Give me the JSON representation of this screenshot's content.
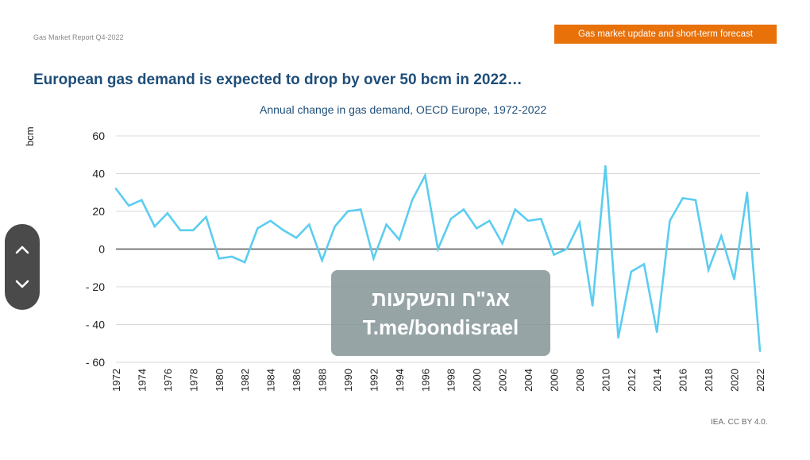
{
  "header": {
    "report_label": "Gas Market Report Q4-2022",
    "section_badge": "Gas market update and short-term forecast",
    "headline": "European gas demand is expected to drop by over 50 bcm in 2022…"
  },
  "footer": {
    "credit": "IEA. CC BY 4.0."
  },
  "watermark": {
    "line1": "אג\"ח והשקעות",
    "line2": "T.me/bondisrael"
  },
  "scroll": {
    "up_icon": "chevron-up-icon",
    "down_icon": "chevron-down-icon"
  },
  "colors": {
    "line": "#5bcdf0",
    "zero_line": "#555555",
    "grid": "#d9d9d9",
    "headline": "#1f4e79",
    "badge": "#e8710a"
  },
  "chart_data": {
    "type": "line",
    "title": "Annual change in gas demand, OECD Europe, 1972-2022",
    "xlabel": "",
    "ylabel": "bcm",
    "ylim": [
      -60,
      60
    ],
    "yticks": [
      60,
      40,
      20,
      0,
      -20,
      -40,
      -60
    ],
    "ytick_labels": [
      "60",
      "40",
      "20",
      "0",
      "- 20",
      "- 40",
      "- 60"
    ],
    "xtick_labels": [
      "1972",
      "1974",
      "1976",
      "1978",
      "1980",
      "1982",
      "1984",
      "1986",
      "1988",
      "1990",
      "1992",
      "1994",
      "1996",
      "1998",
      "2000",
      "2002",
      "2004",
      "2006",
      "2008",
      "2010",
      "2012",
      "2014",
      "2016",
      "2018",
      "2020",
      "2022"
    ],
    "grid": true,
    "series": [
      {
        "name": "Annual change in gas demand",
        "x": [
          1972,
          1973,
          1974,
          1975,
          1976,
          1977,
          1978,
          1979,
          1980,
          1981,
          1982,
          1983,
          1984,
          1985,
          1986,
          1987,
          1988,
          1989,
          1990,
          1991,
          1992,
          1993,
          1994,
          1995,
          1996,
          1997,
          1998,
          1999,
          2000,
          2001,
          2002,
          2003,
          2004,
          2005,
          2006,
          2007,
          2008,
          2009,
          2010,
          2011,
          2012,
          2013,
          2014,
          2015,
          2016,
          2017,
          2018,
          2019,
          2020,
          2021,
          2022
        ],
        "values": [
          32,
          23,
          26,
          12,
          19,
          10,
          10,
          17,
          -5,
          -4,
          -7,
          11,
          15,
          10,
          6,
          13,
          -6,
          12,
          20,
          21,
          -5,
          13,
          5,
          26,
          39,
          0,
          16,
          21,
          11,
          15,
          3,
          21,
          15,
          16,
          -3,
          0,
          14,
          -30,
          44,
          -47,
          -12,
          -8,
          -44,
          15,
          27,
          26,
          -11,
          7,
          -16,
          30,
          -54
        ]
      }
    ]
  }
}
